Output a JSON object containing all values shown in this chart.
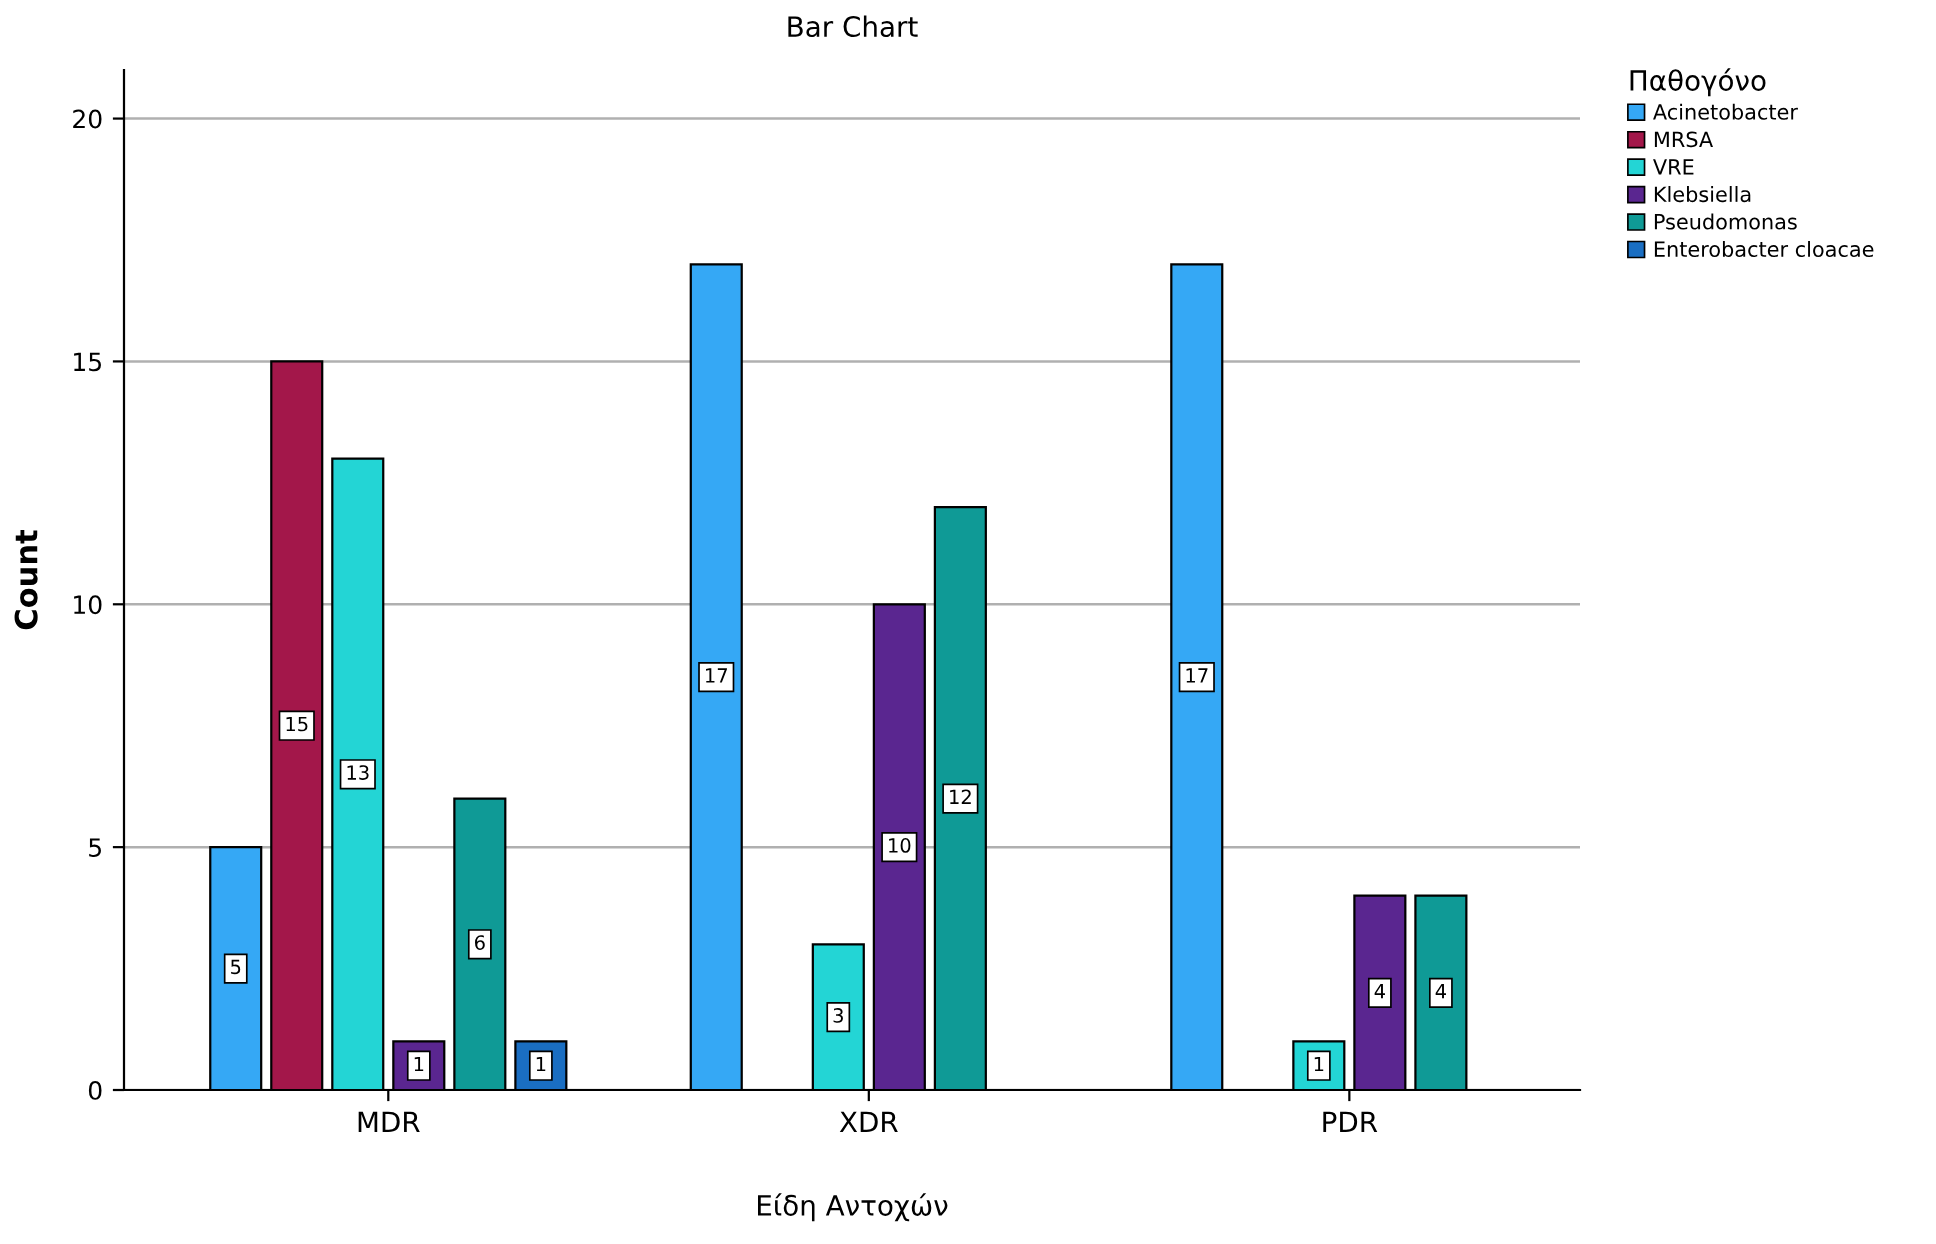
{
  "chart_data": {
    "type": "bar",
    "title": "Bar Chart",
    "xlabel": "Είδη Αντοχών",
    "ylabel": "Count",
    "legend_title": "Παθογόνο",
    "categories": [
      "MDR",
      "XDR",
      "PDR"
    ],
    "series": [
      {
        "name": "Acinetobacter",
        "color": "#35a8f5",
        "values": [
          5,
          17,
          17
        ]
      },
      {
        "name": "MRSA",
        "color": "#a3174a",
        "values": [
          15,
          null,
          null
        ]
      },
      {
        "name": "VRE",
        "color": "#23d5d5",
        "values": [
          13,
          3,
          1
        ]
      },
      {
        "name": "Klebsiella",
        "color": "#5a2690",
        "values": [
          1,
          10,
          4
        ]
      },
      {
        "name": "Pseudomonas",
        "color": "#0f9a96",
        "values": [
          6,
          12,
          4
        ]
      },
      {
        "name": "Enterobacter cloacae",
        "color": "#1a6ec2",
        "values": [
          1,
          null,
          null
        ]
      }
    ],
    "ylim": [
      0,
      21
    ],
    "yticks": [
      0,
      5,
      10,
      15,
      20
    ],
    "grid": "y",
    "legend": "top right",
    "data_labels": true
  }
}
